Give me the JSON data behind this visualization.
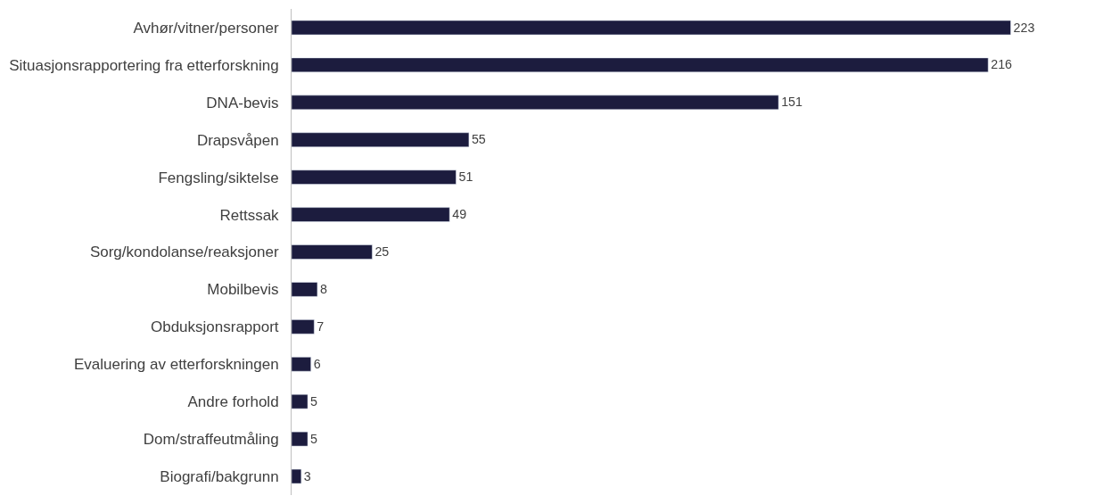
{
  "chart_data": {
    "type": "bar",
    "orientation": "horizontal",
    "data_labels": true,
    "legend": false,
    "categories": [
      "Avhør/vitner/personer",
      "Situasjonsrapportering fra etterforskning",
      "DNA-bevis",
      "Drapsvåpen",
      "Fengsling/siktelse",
      "Rettssak",
      "Sorg/kondolanse/reaksjoner",
      "Mobilbevis",
      "Obduksjonsrapport",
      "Evaluering av etterforskningen",
      "Andre forhold",
      "Dom/straffeutmåling",
      "Biografi/bakgrunn"
    ],
    "values": [
      223,
      216,
      151,
      55,
      51,
      49,
      25,
      8,
      7,
      6,
      5,
      5,
      3
    ],
    "color": "#1c1c3e"
  }
}
